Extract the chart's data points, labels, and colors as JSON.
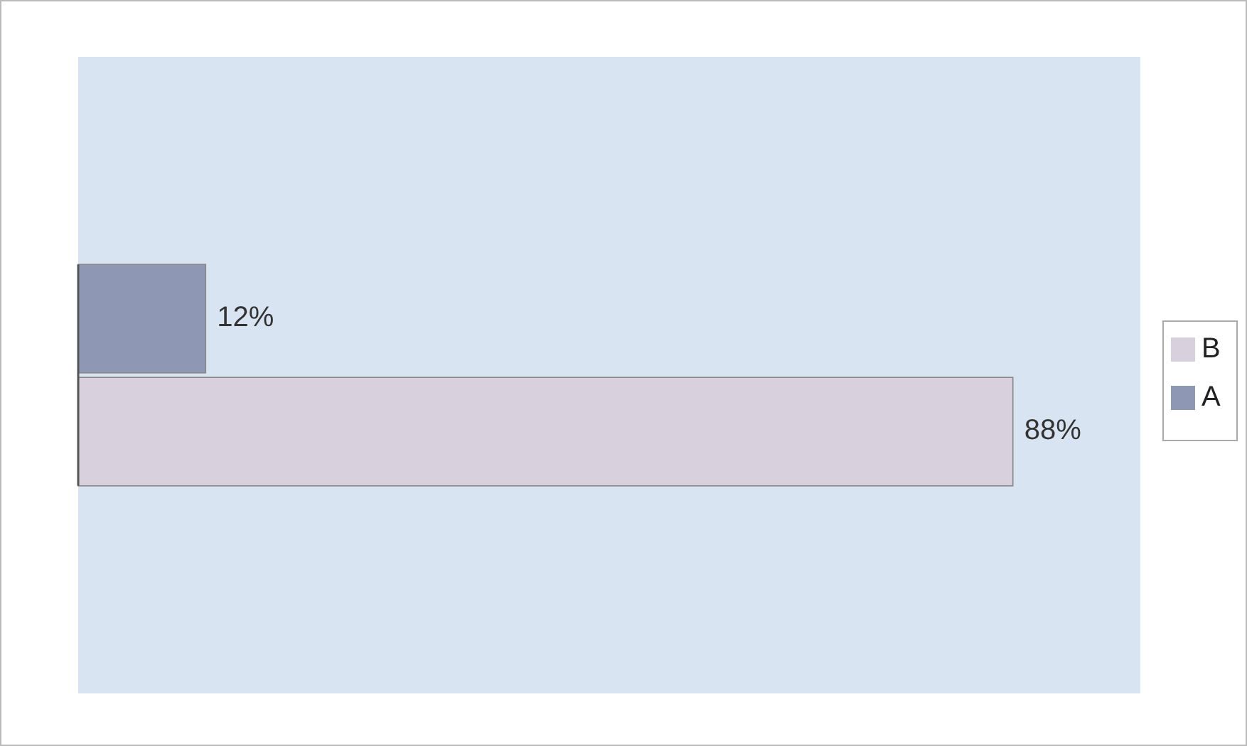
{
  "chart_data": {
    "type": "bar",
    "orientation": "horizontal",
    "categories": [
      null
    ],
    "series": [
      {
        "name": "A",
        "color": "#8e98b4",
        "values": [
          12
        ],
        "value_labels": [
          "12%"
        ]
      },
      {
        "name": "B",
        "color": "#d8d0dc",
        "values": [
          88
        ],
        "value_labels": [
          "88%"
        ]
      }
    ],
    "xlim": [
      0,
      100
    ],
    "legend": "right"
  }
}
